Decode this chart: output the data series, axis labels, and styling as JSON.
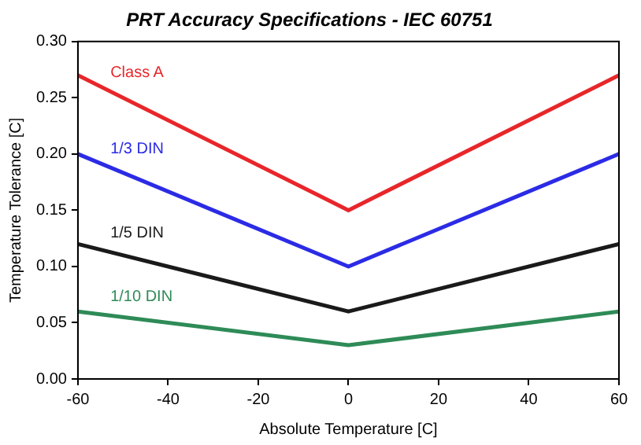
{
  "chart_data": {
    "type": "line",
    "title": "PRT Accuracy Specifications - IEC 60751",
    "xlabel": "Absolute Temperature [C]",
    "ylabel": "Temperature Tolerance [C]",
    "x": [
      -60,
      0,
      60
    ],
    "series": [
      {
        "name": "Class A",
        "color": "#e8262a",
        "values": [
          0.27,
          0.15,
          0.27
        ]
      },
      {
        "name": "1/3 DIN",
        "color": "#2b2be6",
        "values": [
          0.2,
          0.1,
          0.2
        ]
      },
      {
        "name": "1/5 DIN",
        "color": "#1a1a1a",
        "values": [
          0.12,
          0.06,
          0.12
        ]
      },
      {
        "name": "1/10 DIN",
        "color": "#2e8b57",
        "values": [
          0.06,
          0.03,
          0.06
        ]
      }
    ],
    "xlim": [
      -60,
      60
    ],
    "xticks": [
      -60,
      -40,
      -20,
      0,
      20,
      40,
      60
    ],
    "ylim": [
      0,
      0.3
    ],
    "yticks": [
      {
        "value": 0,
        "label": "0.00"
      },
      {
        "value": 0.05,
        "label": "0.05"
      },
      {
        "value": 0.1,
        "label": "0.10"
      },
      {
        "value": 0.15,
        "label": "0.15"
      },
      {
        "value": 0.2,
        "label": "0.20"
      },
      {
        "value": 0.25,
        "label": "0.25"
      },
      {
        "value": 0.3,
        "label": "0.30"
      }
    ],
    "grid": false,
    "legend": false,
    "marker": "none",
    "line_style": "solid"
  }
}
